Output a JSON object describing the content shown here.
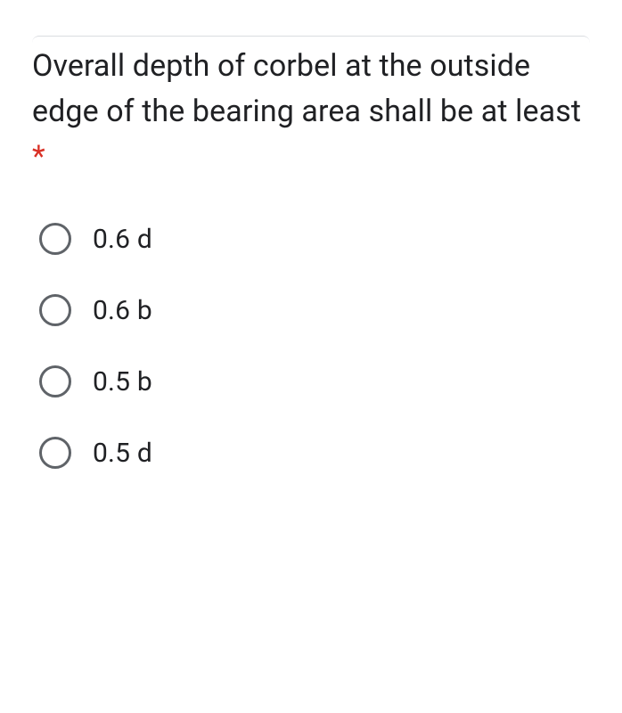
{
  "question": {
    "text": "Overall depth of corbel at the outside edge of the bearing area shall be at least ",
    "required_marker": "*",
    "required_color": "#d93025"
  },
  "options": [
    {
      "label": "0.6 d",
      "selected": false
    },
    {
      "label": "0.6 b",
      "selected": false
    },
    {
      "label": "0.5 b",
      "selected": false
    },
    {
      "label": "0.5 d",
      "selected": false
    }
  ],
  "styling": {
    "background_color": "#ffffff",
    "text_color": "#202124",
    "radio_border_color": "#5f6368",
    "question_fontsize": 34,
    "option_fontsize": 30,
    "radio_size": 36,
    "radio_border_width": 3
  }
}
